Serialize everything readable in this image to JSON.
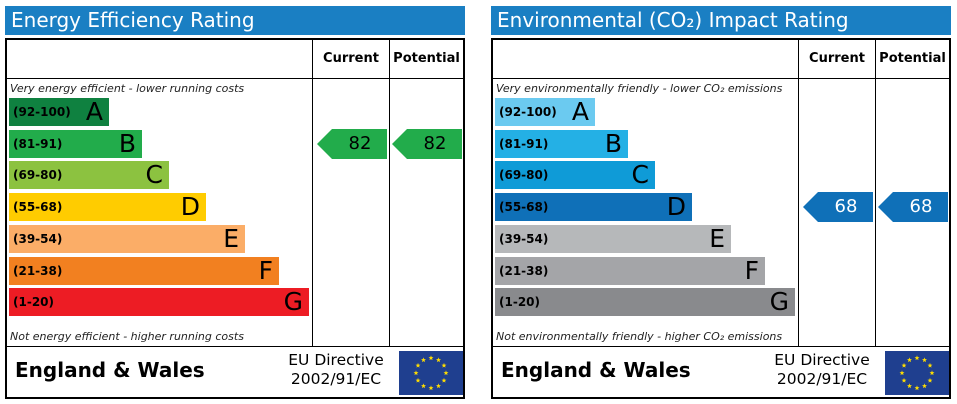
{
  "colors": {
    "title_bar": "#1a7fc3",
    "energy_bands": [
      "#0f8140",
      "#22ac4b",
      "#8cc240",
      "#ffcc00",
      "#fbad67",
      "#f28020",
      "#ed1c24"
    ],
    "environmental_bands": [
      "#6bcaf0",
      "#24b0e5",
      "#0f9bd7",
      "#0f70b8",
      "#b6b8ba",
      "#a4a5a8",
      "#898a8d"
    ],
    "eu_flag": "#1f3f8f",
    "eu_stars": "#ffdd00"
  },
  "icons": {
    "eu_flag": "eu-flag-icon"
  },
  "chart_data": [
    {
      "type": "bar",
      "title": "Energy Efficiency Rating",
      "column_headers": [
        "Current",
        "Potential"
      ],
      "top_note": "Very energy efficient - lower running costs",
      "bottom_note": "Not energy efficient - higher running costs",
      "bands": [
        {
          "range": "(92-100)",
          "letter": "A"
        },
        {
          "range": "(81-91)",
          "letter": "B"
        },
        {
          "range": "(69-80)",
          "letter": "C"
        },
        {
          "range": "(55-68)",
          "letter": "D"
        },
        {
          "range": "(39-54)",
          "letter": "E"
        },
        {
          "range": "(21-38)",
          "letter": "F"
        },
        {
          "range": "(1-20)",
          "letter": "G"
        }
      ],
      "current": {
        "value": 82,
        "band": "B",
        "color": "#22ac4b",
        "text_color": "#000000"
      },
      "potential": {
        "value": 82,
        "band": "B",
        "color": "#22ac4b",
        "text_color": "#000000"
      },
      "footer": {
        "country": "England & Wales",
        "directive_line1": "EU Directive",
        "directive_line2": "2002/91/EC"
      }
    },
    {
      "type": "bar",
      "title": "Environmental (CO₂) Impact Rating",
      "column_headers": [
        "Current",
        "Potential"
      ],
      "top_note": "Very environmentally friendly - lower CO₂ emissions",
      "bottom_note": "Not environmentally friendly - higher CO₂ emissions",
      "bands": [
        {
          "range": "(92-100)",
          "letter": "A"
        },
        {
          "range": "(81-91)",
          "letter": "B"
        },
        {
          "range": "(69-80)",
          "letter": "C"
        },
        {
          "range": "(55-68)",
          "letter": "D"
        },
        {
          "range": "(39-54)",
          "letter": "E"
        },
        {
          "range": "(21-38)",
          "letter": "F"
        },
        {
          "range": "(1-20)",
          "letter": "G"
        }
      ],
      "current": {
        "value": 68,
        "band": "D",
        "color": "#0f70b8",
        "text_color": "#ffffff"
      },
      "potential": {
        "value": 68,
        "band": "D",
        "color": "#0f70b8",
        "text_color": "#ffffff"
      },
      "footer": {
        "country": "England & Wales",
        "directive_line1": "EU Directive",
        "directive_line2": "2002/91/EC"
      }
    }
  ]
}
